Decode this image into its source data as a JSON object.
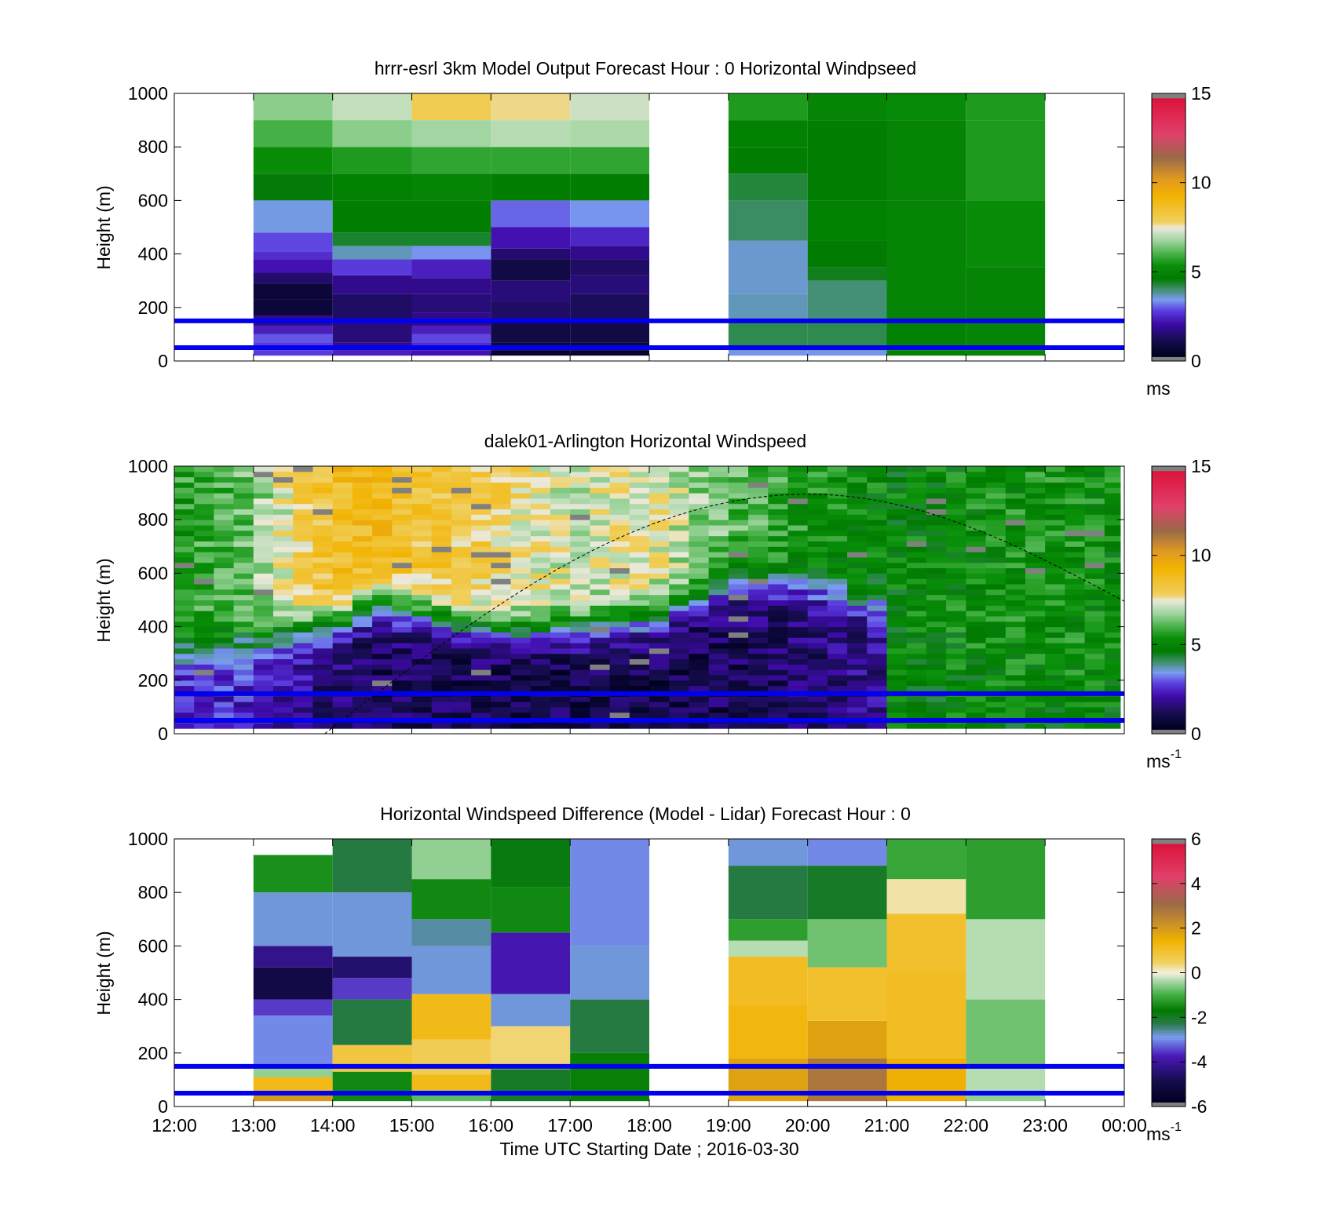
{
  "figure": {
    "xlabel": "Time UTC  Starting Date ; 2016-03-30",
    "x_tick_labels": [
      "12:00",
      "13:00",
      "14:00",
      "15:00",
      "16:00",
      "17:00",
      "18:00",
      "19:00",
      "20:00",
      "21:00",
      "22:00",
      "23:00",
      "00:00"
    ],
    "x_range_hours": [
      12,
      24
    ],
    "blue_lines_height_m": [
      50,
      150
    ],
    "blue_line_color": "#0000ee"
  },
  "chart_data": [
    {
      "type": "heatmap",
      "title": "hrrr-esrl 3km Model Output   Forecast Hour : 0 Horizontal Windpseed",
      "ylabel": "Height (m)",
      "ylim": [
        0,
        1000
      ],
      "y_ticks": [
        0,
        200,
        400,
        600,
        800,
        1000
      ],
      "colorbar": {
        "min": 0,
        "max": 15,
        "ticks": [
          0,
          5,
          10,
          15
        ],
        "unit": "ms",
        "unit_sup": ""
      },
      "columns": [
        {
          "t0": 13,
          "t1": 14,
          "cells": [
            [
              20,
              40,
              2.8
            ],
            [
              40,
              70,
              2.8
            ],
            [
              70,
              100,
              3.0
            ],
            [
              100,
              130,
              2.4
            ],
            [
              130,
              170,
              1.8
            ],
            [
              170,
              230,
              0.8
            ],
            [
              230,
              290,
              0.8
            ],
            [
              290,
              330,
              1.5
            ],
            [
              330,
              380,
              2.2
            ],
            [
              380,
              410,
              2.6
            ],
            [
              410,
              480,
              2.9
            ],
            [
              480,
              600,
              3.5
            ],
            [
              600,
              700,
              4.6
            ],
            [
              700,
              800,
              5.3
            ],
            [
              800,
              900,
              6.0
            ],
            [
              900,
              1000,
              6.6
            ]
          ]
        },
        {
          "t0": 14,
          "t1": 15,
          "cells": [
            [
              20,
              40,
              2.4
            ],
            [
              40,
              70,
              1.8
            ],
            [
              70,
              150,
              1.6
            ],
            [
              150,
              250,
              1.4
            ],
            [
              250,
              320,
              1.8
            ],
            [
              320,
              380,
              2.8
            ],
            [
              380,
              430,
              3.7
            ],
            [
              430,
              480,
              4.4
            ],
            [
              480,
              600,
              4.8
            ],
            [
              600,
              700,
              4.9
            ],
            [
              700,
              800,
              5.6
            ],
            [
              800,
              900,
              6.6
            ],
            [
              900,
              1000,
              7.1
            ]
          ]
        },
        {
          "t0": 15,
          "t1": 16,
          "cells": [
            [
              20,
              40,
              2.2
            ],
            [
              40,
              70,
              2.6
            ],
            [
              70,
              100,
              2.9
            ],
            [
              100,
              130,
              2.4
            ],
            [
              130,
              180,
              1.8
            ],
            [
              180,
              250,
              1.6
            ],
            [
              250,
              310,
              1.8
            ],
            [
              310,
              380,
              2.4
            ],
            [
              380,
              430,
              3.4
            ],
            [
              430,
              480,
              4.4
            ],
            [
              480,
              600,
              4.8
            ],
            [
              600,
              700,
              5.0
            ],
            [
              700,
              800,
              5.8
            ],
            [
              800,
              900,
              6.8
            ],
            [
              900,
              1000,
              8.0
            ]
          ]
        },
        {
          "t0": 16,
          "t1": 17,
          "cells": [
            [
              20,
              40,
              0.6
            ],
            [
              40,
              70,
              0.8
            ],
            [
              70,
              150,
              1.0
            ],
            [
              150,
              220,
              1.4
            ],
            [
              220,
              300,
              1.6
            ],
            [
              300,
              380,
              1.0
            ],
            [
              380,
              420,
              1.5
            ],
            [
              420,
              500,
              2.2
            ],
            [
              500,
              600,
              3.1
            ],
            [
              600,
              700,
              4.8
            ],
            [
              700,
              800,
              5.8
            ],
            [
              800,
              900,
              7.0
            ],
            [
              900,
              1000,
              7.7
            ]
          ]
        },
        {
          "t0": 17,
          "t1": 18,
          "cells": [
            [
              20,
              40,
              0.6
            ],
            [
              40,
              70,
              0.8
            ],
            [
              70,
              150,
              1.0
            ],
            [
              150,
              250,
              1.3
            ],
            [
              250,
              320,
              1.6
            ],
            [
              320,
              380,
              1.4
            ],
            [
              380,
              430,
              1.8
            ],
            [
              430,
              500,
              2.5
            ],
            [
              500,
              600,
              3.4
            ],
            [
              600,
              700,
              4.8
            ],
            [
              700,
              800,
              5.8
            ],
            [
              800,
              900,
              6.9
            ],
            [
              900,
              1000,
              7.2
            ]
          ]
        },
        {
          "t0": 19,
          "t1": 20,
          "cells": [
            [
              20,
              40,
              3.4
            ],
            [
              40,
              150,
              4.2
            ],
            [
              150,
              250,
              3.7
            ],
            [
              250,
              450,
              3.6
            ],
            [
              450,
              600,
              4.1
            ],
            [
              600,
              700,
              4.3
            ],
            [
              700,
              800,
              4.8
            ],
            [
              800,
              900,
              4.9
            ],
            [
              900,
              1000,
              5.6
            ]
          ]
        },
        {
          "t0": 20,
          "t1": 21,
          "cells": [
            [
              20,
              40,
              3.4
            ],
            [
              40,
              150,
              4.2
            ],
            [
              150,
              300,
              4.0
            ],
            [
              300,
              350,
              4.5
            ],
            [
              350,
              450,
              4.7
            ],
            [
              450,
              600,
              4.9
            ],
            [
              600,
              900,
              4.8
            ],
            [
              900,
              1000,
              5.0
            ]
          ]
        },
        {
          "t0": 21,
          "t1": 22,
          "cells": [
            [
              20,
              40,
              4.9
            ],
            [
              40,
              150,
              4.9
            ],
            [
              150,
              600,
              5.0
            ],
            [
              600,
              900,
              5.0
            ],
            [
              900,
              1000,
              5.2
            ]
          ]
        },
        {
          "t0": 22,
          "t1": 23,
          "cells": [
            [
              20,
              40,
              5.0
            ],
            [
              40,
              150,
              5.0
            ],
            [
              150,
              350,
              5.0
            ],
            [
              350,
              600,
              5.3
            ],
            [
              600,
              900,
              5.6
            ],
            [
              900,
              1000,
              5.6
            ]
          ]
        }
      ]
    },
    {
      "type": "heatmap",
      "title": "dalek01-Arlington  Horizontal Windspeed",
      "ylabel": "Height (m)",
      "ylim": [
        0,
        1000
      ],
      "y_ticks": [
        0,
        200,
        400,
        600,
        800,
        1000
      ],
      "x_data_range_hours": [
        12,
        23.95
      ],
      "colorbar": {
        "min": 0,
        "max": 15,
        "ticks": [
          0,
          5,
          10,
          15
        ],
        "unit": "ms",
        "unit_sup": "-1"
      },
      "bins_per_hour": 4,
      "profile_hours": [
        12.0,
        13.0,
        14.0,
        14.5,
        15.0,
        16.0,
        17.0,
        18.0,
        19.0,
        20.0,
        21.0,
        21.05,
        22.0,
        23.0,
        24.0
      ],
      "profile_low_ms": [
        2.5,
        2.5,
        1.5,
        1.2,
        1.2,
        1.0,
        1.0,
        1.0,
        1.2,
        1.5,
        1.8,
        4.8,
        5.0,
        5.0,
        5.0
      ],
      "profile_transition_m": [
        300,
        350,
        400,
        480,
        450,
        380,
        380,
        420,
        550,
        550,
        450,
        200,
        200,
        200,
        200
      ],
      "profile_high_ms": [
        5.5,
        6.5,
        8.8,
        9.0,
        8.5,
        8.0,
        7.2,
        7.5,
        6.2,
        5.5,
        5.0,
        5.0,
        5.2,
        5.4,
        5.2
      ],
      "dashed_curve": {
        "start_hour": 13.9,
        "peak_hour": 20.0,
        "peak_height_m": 895,
        "end_hour": 24.0,
        "end_height_m": 495
      }
    },
    {
      "type": "heatmap",
      "title": "Horizontal Windspeed Difference (Model - Lidar) Forecast Hour : 0",
      "ylabel": "Height (m)",
      "ylim": [
        0,
        1000
      ],
      "y_ticks": [
        0,
        200,
        400,
        600,
        800,
        1000
      ],
      "colorbar": {
        "min": -6,
        "max": 6,
        "ticks": [
          -6,
          -4,
          -2,
          0,
          2,
          4,
          6
        ],
        "unit": "ms",
        "unit_sup": "-1"
      },
      "columns": [
        {
          "t0": 13,
          "t1": 14,
          "top_m": 940,
          "cells": [
            [
              20,
              60,
              2.0
            ],
            [
              60,
              110,
              1.2
            ],
            [
              110,
              150,
              -0.5
            ],
            [
              150,
              340,
              -3.0
            ],
            [
              340,
              400,
              -3.5
            ],
            [
              400,
              520,
              -5.0
            ],
            [
              520,
              600,
              -4.2
            ],
            [
              600,
              800,
              -2.8
            ],
            [
              800,
              940,
              -1.4
            ]
          ]
        },
        {
          "t0": 14,
          "t1": 15,
          "cells": [
            [
              20,
              130,
              -1.5
            ],
            [
              130,
              230,
              0.8
            ],
            [
              230,
              400,
              -2.2
            ],
            [
              400,
              480,
              -3.5
            ],
            [
              480,
              560,
              -4.5
            ],
            [
              560,
              800,
              -2.8
            ],
            [
              800,
              1000,
              -2.2
            ]
          ]
        },
        {
          "t0": 15,
          "t1": 16,
          "cells": [
            [
              20,
              60,
              -0.8
            ],
            [
              60,
              120,
              1.2
            ],
            [
              120,
              250,
              0.6
            ],
            [
              250,
              420,
              1.2
            ],
            [
              420,
              600,
              -2.8
            ],
            [
              600,
              700,
              -2.6
            ],
            [
              700,
              850,
              -1.5
            ],
            [
              850,
              1000,
              -0.5
            ]
          ]
        },
        {
          "t0": 16,
          "t1": 17,
          "cells": [
            [
              20,
              140,
              -2.0
            ],
            [
              140,
              300,
              0.4
            ],
            [
              300,
              420,
              -2.8
            ],
            [
              420,
              650,
              -3.8
            ],
            [
              650,
              820,
              -1.5
            ],
            [
              820,
              1000,
              -1.8
            ]
          ]
        },
        {
          "t0": 17,
          "t1": 18,
          "cells": [
            [
              20,
              200,
              -1.6
            ],
            [
              200,
              400,
              -2.2
            ],
            [
              400,
              600,
              -2.8
            ],
            [
              600,
              1000,
              -3.0
            ]
          ]
        },
        {
          "t0": 19,
          "t1": 20,
          "cells": [
            [
              20,
              180,
              1.8
            ],
            [
              180,
              380,
              1.3
            ],
            [
              380,
              560,
              1.1
            ],
            [
              560,
              620,
              -0.3
            ],
            [
              620,
              700,
              -1.2
            ],
            [
              700,
              900,
              -2.2
            ],
            [
              900,
              1000,
              -2.8
            ]
          ]
        },
        {
          "t0": 20,
          "t1": 21,
          "cells": [
            [
              20,
              180,
              2.8
            ],
            [
              180,
              320,
              1.8
            ],
            [
              320,
              520,
              1.0
            ],
            [
              520,
              700,
              -0.7
            ],
            [
              700,
              900,
              -2.0
            ],
            [
              900,
              1000,
              -3.0
            ]
          ]
        },
        {
          "t0": 21,
          "t1": 22,
          "cells": [
            [
              20,
              180,
              1.5
            ],
            [
              180,
              500,
              1.1
            ],
            [
              500,
              720,
              1.0
            ],
            [
              720,
              850,
              0.2
            ],
            [
              850,
              1000,
              -1.1
            ]
          ]
        },
        {
          "t0": 22,
          "t1": 23,
          "cells": [
            [
              20,
              60,
              -0.5
            ],
            [
              60,
              150,
              -0.3
            ],
            [
              150,
              400,
              -0.7
            ],
            [
              400,
              700,
              -0.3
            ],
            [
              700,
              1000,
              -1.2
            ]
          ]
        }
      ]
    }
  ]
}
